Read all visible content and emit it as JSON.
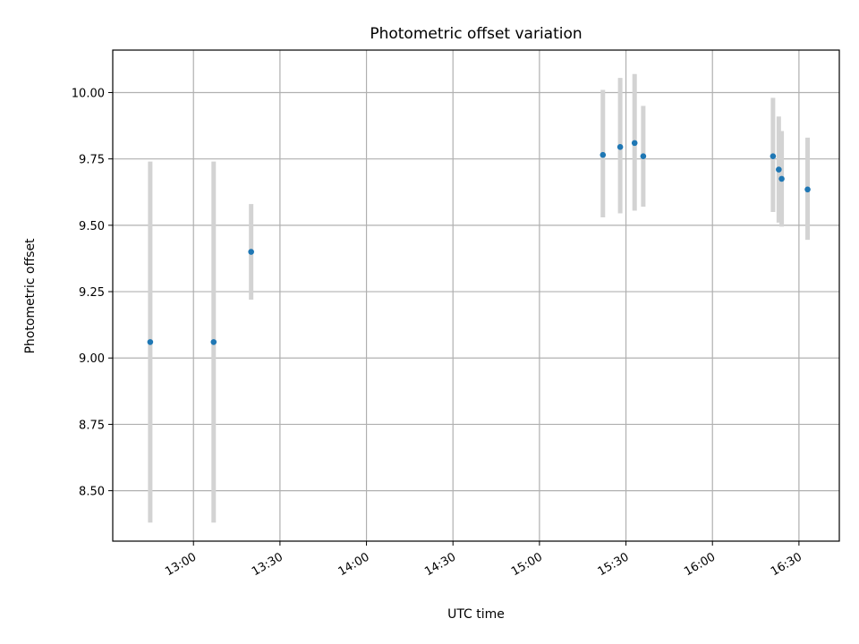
{
  "chart_data": {
    "type": "scatter",
    "title": "Photometric offset variation",
    "xlabel": "UTC time",
    "ylabel": "Photometric offset",
    "x_ticks": [
      "13:00",
      "13:30",
      "14:00",
      "14:30",
      "15:00",
      "15:30",
      "16:00",
      "16:30"
    ],
    "y_ticks": [
      "8.50",
      "8.75",
      "9.00",
      "9.25",
      "9.50",
      "9.75",
      "10.00"
    ],
    "xlim": [
      "12:32",
      "16:44"
    ],
    "ylim": [
      8.31,
      10.16
    ],
    "grid": true,
    "points": [
      {
        "x": "12:45",
        "y": 9.06,
        "ylow": 8.38,
        "yhigh": 9.74
      },
      {
        "x": "13:07",
        "y": 9.06,
        "ylow": 8.38,
        "yhigh": 9.74
      },
      {
        "x": "13:20",
        "y": 9.4,
        "ylow": 9.22,
        "yhigh": 9.58
      },
      {
        "x": "15:22",
        "y": 9.765,
        "ylow": 9.53,
        "yhigh": 10.01
      },
      {
        "x": "15:28",
        "y": 9.795,
        "ylow": 9.545,
        "yhigh": 10.055
      },
      {
        "x": "15:33",
        "y": 9.81,
        "ylow": 9.555,
        "yhigh": 10.07
      },
      {
        "x": "15:36",
        "y": 9.76,
        "ylow": 9.57,
        "yhigh": 9.95
      },
      {
        "x": "16:21",
        "y": 9.76,
        "ylow": 9.55,
        "yhigh": 9.98
      },
      {
        "x": "16:23",
        "y": 9.71,
        "ylow": 9.51,
        "yhigh": 9.91
      },
      {
        "x": "16:24",
        "y": 9.675,
        "ylow": 9.495,
        "yhigh": 9.855
      },
      {
        "x": "16:33",
        "y": 9.635,
        "ylow": 9.445,
        "yhigh": 9.83
      }
    ],
    "colors": {
      "point": "#1f77b4",
      "errorbar": "#d3d3d3",
      "grid": "#b0b0b0",
      "axis": "#000000"
    }
  }
}
